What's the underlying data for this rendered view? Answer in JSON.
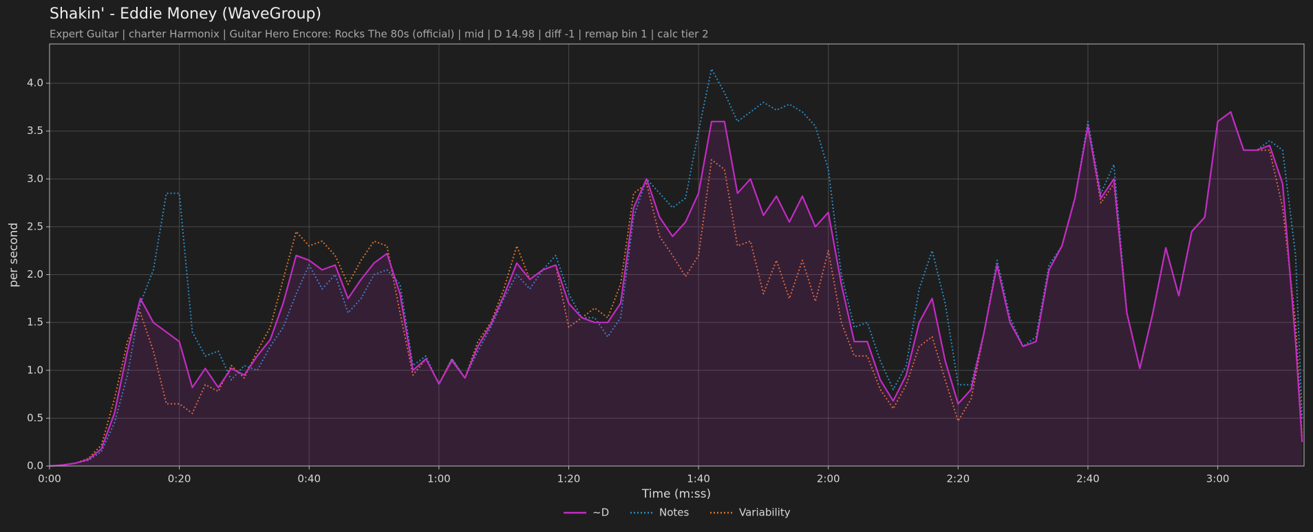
{
  "chart_data": {
    "type": "line",
    "title": "Shakin' - Eddie Money (WaveGroup)",
    "subtitle": "Expert Guitar  |  charter Harmonix  |  Guitar Hero Encore: Rocks The 80s (official)  |  mid  |  D 14.98  |  diff -1  |  remap bin 1  |  calc tier 2",
    "xlabel": "Time (m:ss)",
    "ylabel": "per second",
    "x": [
      0,
      2,
      4,
      6,
      8,
      10,
      12,
      14,
      16,
      18,
      20,
      22,
      24,
      26,
      28,
      30,
      32,
      34,
      36,
      38,
      40,
      42,
      44,
      46,
      48,
      50,
      52,
      54,
      56,
      58,
      60,
      62,
      64,
      66,
      68,
      70,
      72,
      74,
      76,
      78,
      80,
      82,
      84,
      86,
      88,
      90,
      92,
      94,
      96,
      98,
      100,
      102,
      104,
      106,
      108,
      110,
      112,
      114,
      116,
      118,
      120,
      122,
      124,
      126,
      128,
      130,
      132,
      134,
      136,
      138,
      140,
      142,
      144,
      146,
      148,
      150,
      152,
      154,
      156,
      158,
      160,
      162,
      164,
      166,
      168,
      170,
      172,
      174,
      176,
      178,
      180,
      182,
      184,
      186,
      188,
      190,
      192,
      193
    ],
    "series": [
      {
        "name": "~D",
        "color": "#c42cc4",
        "fill": true,
        "dash": false,
        "values": [
          0,
          0.01,
          0.03,
          0.07,
          0.18,
          0.55,
          1.2,
          1.75,
          1.5,
          1.4,
          1.3,
          0.82,
          1.02,
          0.82,
          1.02,
          0.95,
          1.15,
          1.32,
          1.7,
          2.2,
          2.15,
          2.05,
          2.1,
          1.75,
          1.95,
          2.12,
          2.22,
          1.8,
          1.0,
          1.12,
          0.86,
          1.1,
          0.92,
          1.25,
          1.48,
          1.78,
          2.12,
          1.95,
          2.05,
          2.1,
          1.7,
          1.55,
          1.5,
          1.5,
          1.7,
          2.7,
          3.0,
          2.6,
          2.4,
          2.55,
          2.85,
          3.6,
          3.6,
          2.85,
          3.0,
          2.62,
          2.82,
          2.55,
          2.82,
          2.5,
          2.65,
          1.9,
          1.3,
          1.3,
          0.9,
          0.68,
          0.95,
          1.5,
          1.75,
          1.1,
          0.65,
          0.8,
          1.4,
          2.1,
          1.5,
          1.25,
          1.3,
          2.05,
          2.3,
          2.8,
          3.55,
          2.8,
          3.0,
          1.6,
          1.02,
          1.6,
          2.28,
          1.78,
          2.45,
          2.6,
          3.6,
          3.7,
          3.3,
          3.3,
          3.35,
          2.95,
          1.3,
          0.25
        ]
      },
      {
        "name": "Notes",
        "color": "#2b8fc9",
        "fill": false,
        "dash": true,
        "values": [
          0,
          0.01,
          0.03,
          0.06,
          0.15,
          0.45,
          0.95,
          1.7,
          2.05,
          2.85,
          2.85,
          1.4,
          1.15,
          1.2,
          0.9,
          1.05,
          1.0,
          1.25,
          1.45,
          1.8,
          2.1,
          1.85,
          2.0,
          1.6,
          1.75,
          2.0,
          2.05,
          1.9,
          1.05,
          1.15,
          0.85,
          1.12,
          0.92,
          1.2,
          1.45,
          1.75,
          2.0,
          1.85,
          2.05,
          2.2,
          1.8,
          1.55,
          1.55,
          1.35,
          1.55,
          2.6,
          3.0,
          2.85,
          2.7,
          2.8,
          3.5,
          4.15,
          3.9,
          3.6,
          3.7,
          3.8,
          3.72,
          3.78,
          3.7,
          3.55,
          3.1,
          2.0,
          1.45,
          1.5,
          1.1,
          0.8,
          1.05,
          1.85,
          2.25,
          1.7,
          0.85,
          0.85,
          1.4,
          2.15,
          1.55,
          1.25,
          1.35,
          2.1,
          2.3,
          2.8,
          3.6,
          2.85,
          3.15,
          1.6,
          1.02,
          1.6,
          2.28,
          1.78,
          2.45,
          2.6,
          3.6,
          3.7,
          3.3,
          3.3,
          3.4,
          3.3,
          2.2,
          0.5
        ]
      },
      {
        "name": "Variability",
        "color": "#e0752a",
        "fill": false,
        "dash": true,
        "values": [
          0,
          0.01,
          0.03,
          0.08,
          0.22,
          0.7,
          1.3,
          1.6,
          1.2,
          0.65,
          0.65,
          0.55,
          0.85,
          0.78,
          1.05,
          0.92,
          1.2,
          1.45,
          1.95,
          2.45,
          2.3,
          2.35,
          2.2,
          1.9,
          2.15,
          2.35,
          2.3,
          1.6,
          0.95,
          1.12,
          0.86,
          1.12,
          0.92,
          1.3,
          1.5,
          1.85,
          2.3,
          1.95,
          2.05,
          2.1,
          1.45,
          1.55,
          1.65,
          1.55,
          1.9,
          2.85,
          2.95,
          2.4,
          2.2,
          1.98,
          2.2,
          3.2,
          3.1,
          2.3,
          2.35,
          1.8,
          2.15,
          1.75,
          2.15,
          1.72,
          2.25,
          1.5,
          1.15,
          1.15,
          0.8,
          0.6,
          0.85,
          1.25,
          1.35,
          0.9,
          0.47,
          0.7,
          1.4,
          2.1,
          1.5,
          1.25,
          1.3,
          2.05,
          2.3,
          2.8,
          3.55,
          2.75,
          2.95,
          1.6,
          1.02,
          1.6,
          2.28,
          1.78,
          2.45,
          2.6,
          3.6,
          3.7,
          3.3,
          3.3,
          3.3,
          2.7,
          1.5,
          0.3
        ]
      }
    ],
    "xlim": [
      0,
      193.3
    ],
    "xticks": [
      {
        "value": 0,
        "label": "0:00"
      },
      {
        "value": 20,
        "label": "0:20"
      },
      {
        "value": 40,
        "label": "0:40"
      },
      {
        "value": 60,
        "label": "1:00"
      },
      {
        "value": 80,
        "label": "1:20"
      },
      {
        "value": 100,
        "label": "1:40"
      },
      {
        "value": 120,
        "label": "2:00"
      },
      {
        "value": 140,
        "label": "2:20"
      },
      {
        "value": 160,
        "label": "2:40"
      },
      {
        "value": 180,
        "label": "3:00"
      }
    ],
    "ylim": [
      0,
      4.41
    ],
    "yticks": [
      {
        "value": 0,
        "label": "0.0"
      },
      0.5,
      {
        "value": 1,
        "label": "1.0"
      },
      1.5,
      {
        "value": 2,
        "label": "2.0"
      },
      2.5,
      {
        "value": 3,
        "label": "3.0"
      },
      3.5,
      {
        "value": 4,
        "label": "4.0"
      }
    ],
    "grid": true,
    "legend": "bottom"
  }
}
